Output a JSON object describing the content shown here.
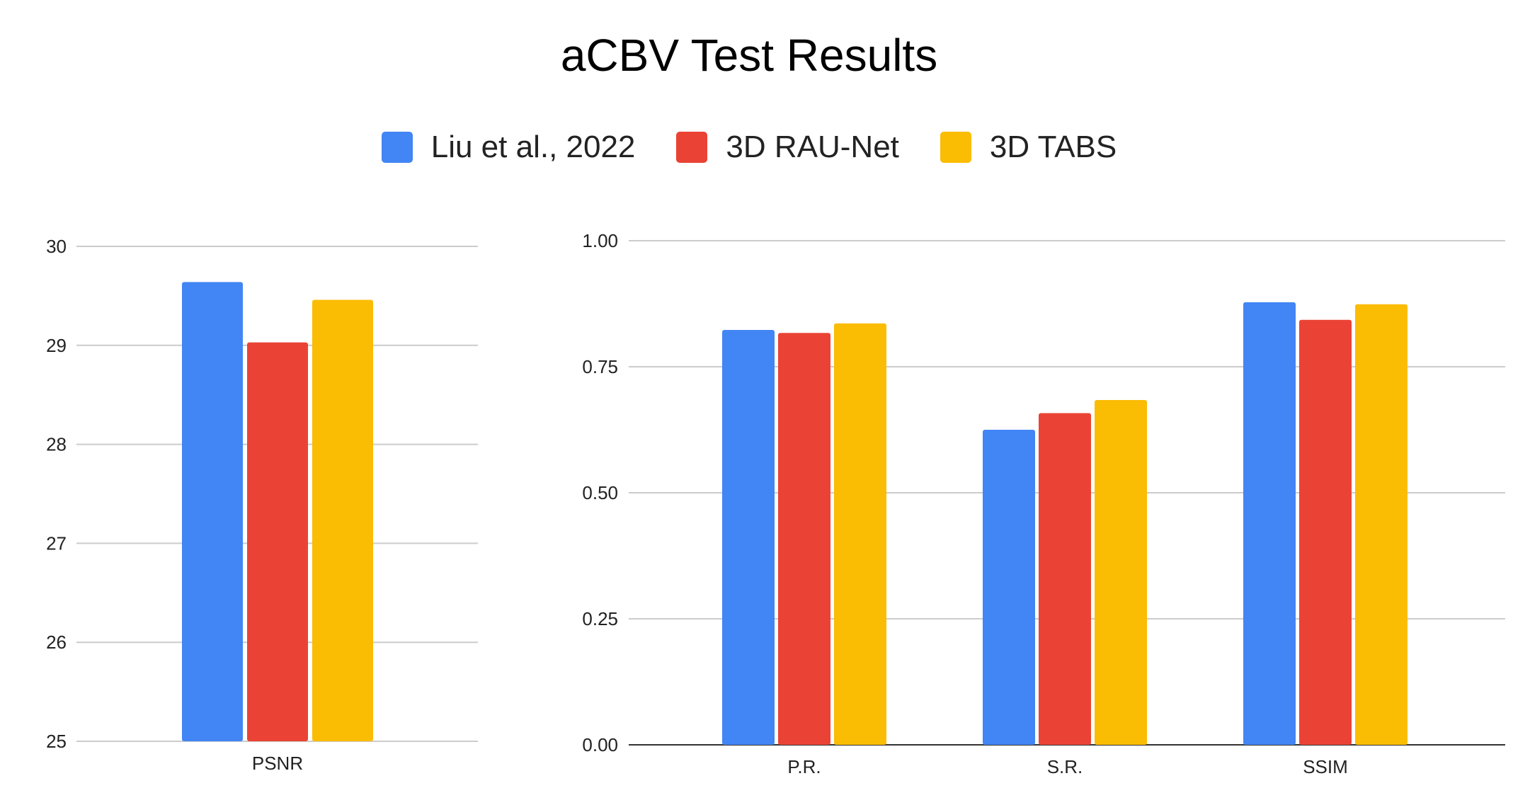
{
  "chart_data": [
    {
      "type": "bar",
      "title": "aCBV Test Results",
      "categories": [
        "PSNR"
      ],
      "series": [
        {
          "name": "Liu et al., 2022",
          "values": [
            29.64
          ]
        },
        {
          "name": "3D RAU-Net",
          "values": [
            29.03
          ]
        },
        {
          "name": "3D TABS",
          "values": [
            29.46
          ]
        }
      ],
      "ylim": [
        25,
        30
      ],
      "yticks": [
        "25",
        "26",
        "27",
        "28",
        "29",
        "30"
      ],
      "grid": true,
      "legend": "top-center"
    },
    {
      "type": "bar",
      "categories": [
        "P.R.",
        "S.R.",
        "SSIM"
      ],
      "series": [
        {
          "name": "Liu et al., 2022",
          "values": [
            0.823,
            0.625,
            0.878
          ]
        },
        {
          "name": "3D RAU-Net",
          "values": [
            0.817,
            0.658,
            0.843
          ]
        },
        {
          "name": "3D TABS",
          "values": [
            0.836,
            0.684,
            0.874
          ]
        }
      ],
      "ylim": [
        0,
        1
      ],
      "yticks": [
        "0.00",
        "0.25",
        "0.50",
        "0.75",
        "1.00"
      ],
      "grid": true,
      "legend": "top-center"
    }
  ],
  "colors": {
    "Liu et al., 2022": "#4285f4",
    "3D RAU-Net": "#ea4335",
    "3D TABS": "#fbbc04",
    "grid": "#cccccc",
    "axis": "#333333"
  }
}
